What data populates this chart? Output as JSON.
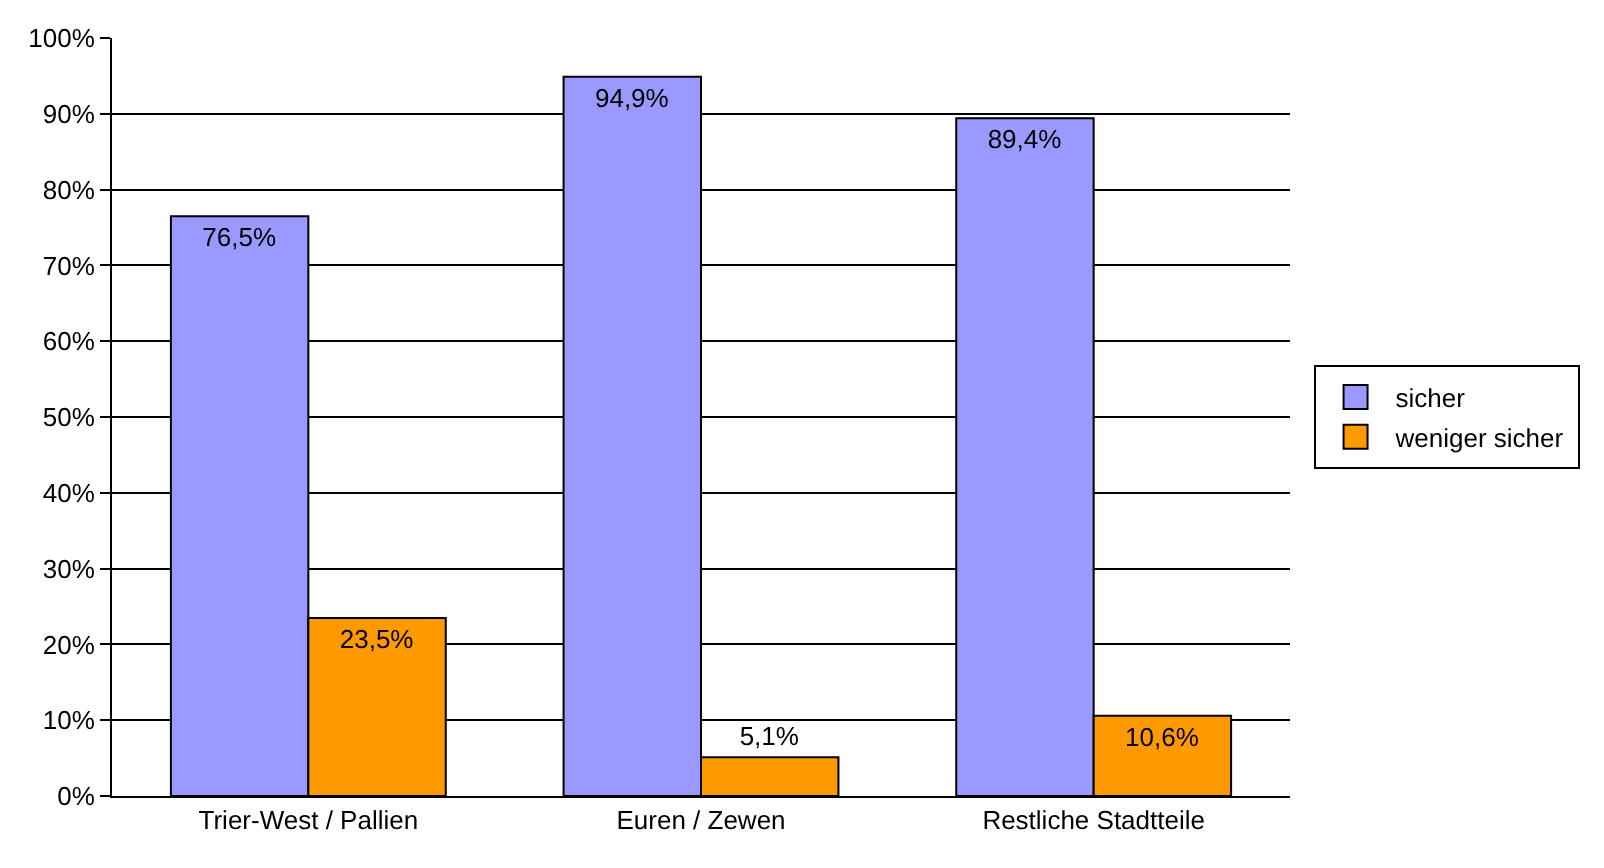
{
  "chart_data": {
    "type": "bar",
    "categories": [
      "Trier-West / Pallien",
      "Euren / Zewen",
      "Restliche Stadtteile"
    ],
    "series": [
      {
        "name": "sicher",
        "color": "#9999ff",
        "values": [
          76.5,
          94.9,
          89.4
        ],
        "value_labels": [
          "76,5%",
          "94,9%",
          "89,4%"
        ]
      },
      {
        "name": "weniger sicher",
        "color": "#ff9900",
        "values": [
          23.5,
          5.1,
          10.6
        ],
        "value_labels": [
          "23,5%",
          "5,1%",
          "10,6%"
        ]
      }
    ],
    "ylim": [
      0,
      100
    ],
    "yticks": [
      {
        "value": 0,
        "label": "0%"
      },
      {
        "value": 10,
        "label": "10%"
      },
      {
        "value": 20,
        "label": "20%"
      },
      {
        "value": 30,
        "label": "30%"
      },
      {
        "value": 40,
        "label": "40%"
      },
      {
        "value": 50,
        "label": "50%"
      },
      {
        "value": 60,
        "label": "60%"
      },
      {
        "value": 70,
        "label": "70%"
      },
      {
        "value": 80,
        "label": "80%"
      },
      {
        "value": 90,
        "label": "90%"
      },
      {
        "value": 100,
        "label": "100%"
      }
    ],
    "grid": "y",
    "legend": "right"
  }
}
